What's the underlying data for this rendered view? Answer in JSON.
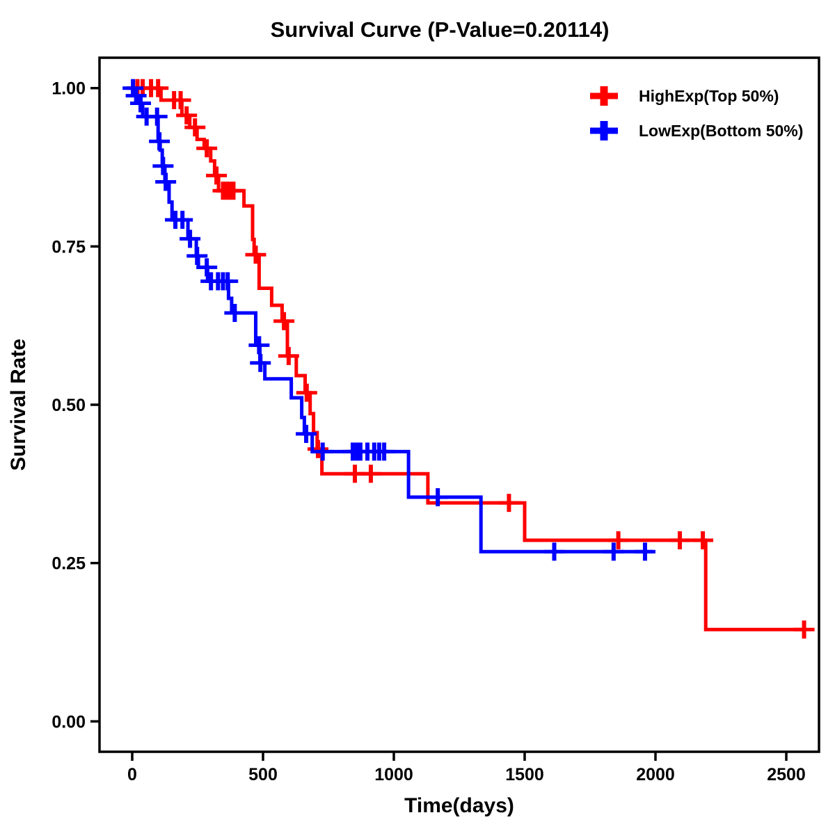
{
  "title": "Survival Curve (P-Value=0.20114)",
  "axes": {
    "x": {
      "label": "Time(days)",
      "tick_labels": [
        "0",
        "500",
        "1000",
        "1500",
        "2000",
        "2500"
      ]
    },
    "y": {
      "label": "Survival Rate",
      "tick_labels": [
        "0.00",
        "0.25",
        "0.50",
        "0.75",
        "1.00"
      ]
    }
  },
  "legend": {
    "items": [
      {
        "key": "highexp",
        "label": "HighExp(Top 50%)",
        "color": "#FF0000",
        "symbol": "plus"
      },
      {
        "key": "lowexp",
        "label": "LowExp(Bottom 50%)",
        "color": "#0000FF",
        "symbol": "plus"
      }
    ]
  },
  "colors": {
    "high_exp": "#FF0000",
    "low_exp": "#0000FF",
    "axis": "#000000",
    "background": "#FFFFFF"
  },
  "chart_data": {
    "type": "line",
    "subtype": "kaplan-meier-step",
    "title": "Survival Curve (P-Value=0.20114)",
    "xlabel": "Time(days)",
    "ylabel": "Survival Rate",
    "xlim": [
      -125,
      2625
    ],
    "ylim": [
      -0.048,
      1.048
    ],
    "x_ticks": [
      0,
      500,
      1000,
      1500,
      2000,
      2500
    ],
    "x_tick_labels": [
      "0",
      "500",
      "1000",
      "1500",
      "2000",
      "2500"
    ],
    "y_ticks": [
      0,
      0.25,
      0.5,
      0.75,
      1
    ],
    "y_tick_labels": [
      "0.00",
      "0.25",
      "0.50",
      "0.75",
      "1.00"
    ],
    "grid": false,
    "legend_position": "top-right",
    "series": [
      {
        "key": "highexp",
        "name": "HighExp(Top 50%)",
        "color": "#FF0000",
        "steps": [
          [
            0,
            1.0
          ],
          [
            110,
            0.981
          ],
          [
            190,
            0.957
          ],
          [
            220,
            0.938
          ],
          [
            248,
            0.919
          ],
          [
            275,
            0.905
          ],
          [
            300,
            0.885
          ],
          [
            315,
            0.862
          ],
          [
            330,
            0.838
          ],
          [
            427,
            0.814
          ],
          [
            460,
            0.761
          ],
          [
            466,
            0.737
          ],
          [
            485,
            0.684
          ],
          [
            533,
            0.657
          ],
          [
            573,
            0.632
          ],
          [
            593,
            0.577
          ],
          [
            627,
            0.546
          ],
          [
            661,
            0.519
          ],
          [
            680,
            0.486
          ],
          [
            693,
            0.456
          ],
          [
            707,
            0.43
          ],
          [
            725,
            0.391
          ],
          [
            1130,
            0.345
          ],
          [
            1500,
            0.286
          ],
          [
            2192,
            0.145
          ]
        ],
        "end_time": 2568,
        "censor_times": [
          20,
          40,
          72,
          99,
          160,
          185,
          208,
          240,
          285,
          322,
          347,
          360,
          373,
          387,
          472,
          580,
          598,
          667,
          710,
          851,
          912,
          1440,
          1858,
          2093,
          2181,
          2568
        ]
      },
      {
        "key": "lowexp",
        "name": "LowExp(Bottom 50%)",
        "color": "#0000FF",
        "steps": [
          [
            0,
            1.0
          ],
          [
            13,
            0.988
          ],
          [
            27,
            0.976
          ],
          [
            40,
            0.955
          ],
          [
            99,
            0.916
          ],
          [
            107,
            0.902
          ],
          [
            115,
            0.877
          ],
          [
            125,
            0.852
          ],
          [
            141,
            0.82
          ],
          [
            152,
            0.792
          ],
          [
            213,
            0.762
          ],
          [
            245,
            0.735
          ],
          [
            253,
            0.717
          ],
          [
            288,
            0.695
          ],
          [
            368,
            0.668
          ],
          [
            380,
            0.645
          ],
          [
            472,
            0.594
          ],
          [
            488,
            0.566
          ],
          [
            507,
            0.541
          ],
          [
            608,
            0.511
          ],
          [
            648,
            0.48
          ],
          [
            658,
            0.454
          ],
          [
            688,
            0.426
          ],
          [
            1056,
            0.354
          ],
          [
            1333,
            0.268
          ]
        ],
        "end_time": 1990,
        "censor_times": [
          3,
          15,
          32,
          55,
          95,
          104,
          118,
          128,
          165,
          192,
          221,
          248,
          285,
          301,
          328,
          347,
          365,
          392,
          485,
          490,
          665,
          728,
          843,
          859,
          872,
          899,
          925,
          944,
          963,
          1168,
          1613,
          1840,
          1960
        ]
      }
    ]
  }
}
